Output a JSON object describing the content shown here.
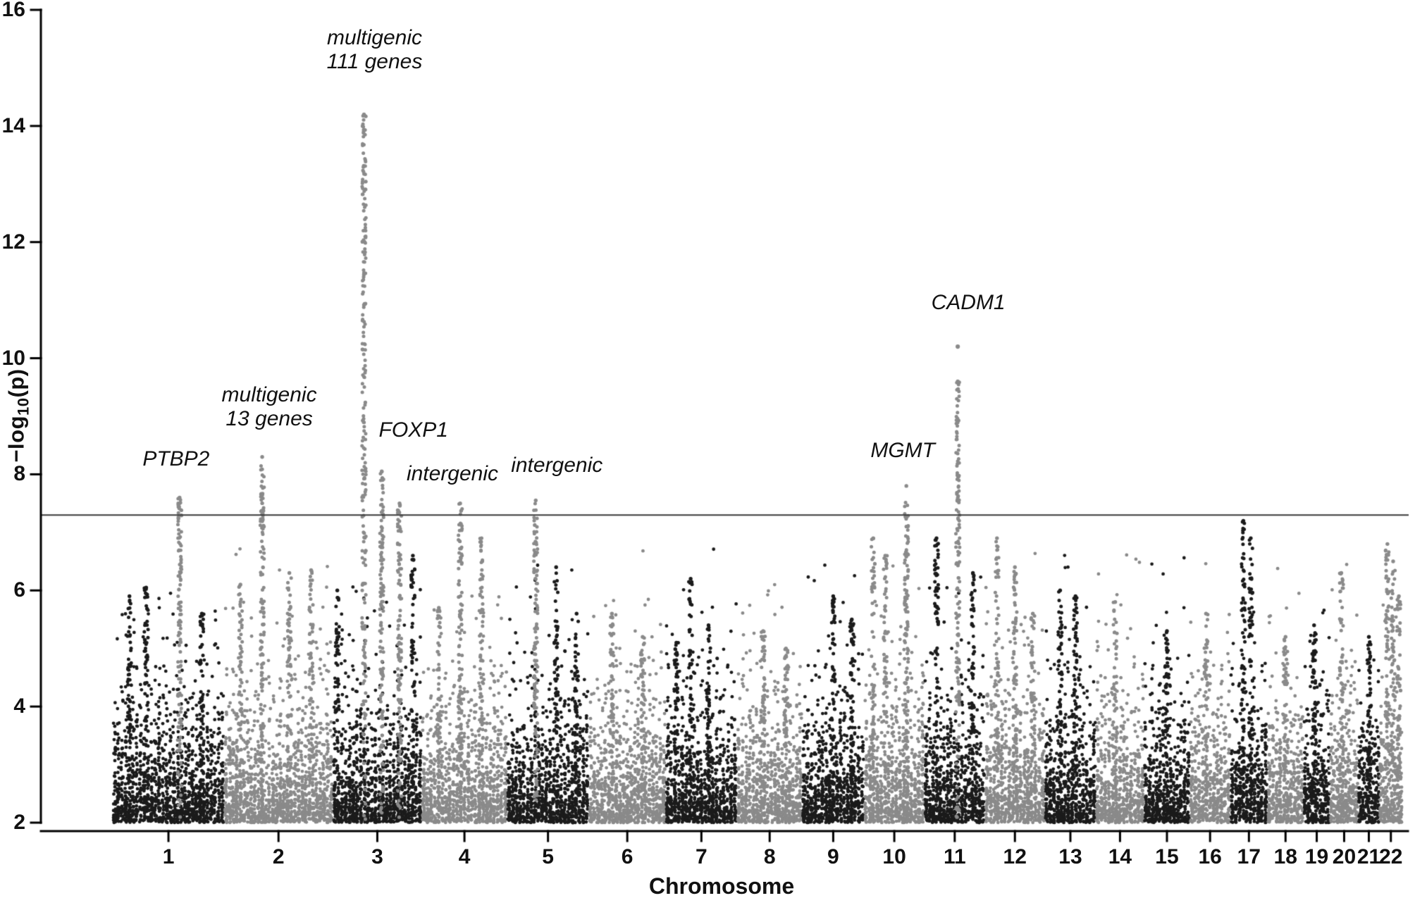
{
  "chart_data": {
    "type": "scatter",
    "variant": "manhattan-plot",
    "title": "",
    "xlabel": "Chromosome",
    "ylabel": "-log10(p)",
    "ylabel_parts": {
      "prefix": "−log",
      "subscript": "10",
      "suffix": "(p)"
    },
    "ylim": [
      2,
      16
    ],
    "yticks": [
      2,
      4,
      6,
      8,
      10,
      12,
      14,
      16
    ],
    "significance_threshold": 7.3,
    "grid": false,
    "legend": false,
    "colors": {
      "odd_chromosome": "#1b1b1b",
      "even_chromosome": "#8a8a8a",
      "highlight": "#8a8a8a",
      "axis": "#000000",
      "threshold_line": "#3a3a3a",
      "background": "#ffffff",
      "text": "#111111"
    },
    "chromosomes": [
      {
        "label": "1",
        "size_mb": 248
      },
      {
        "label": "2",
        "size_mb": 242
      },
      {
        "label": "3",
        "size_mb": 198
      },
      {
        "label": "4",
        "size_mb": 190
      },
      {
        "label": "5",
        "size_mb": 182
      },
      {
        "label": "6",
        "size_mb": 171
      },
      {
        "label": "7",
        "size_mb": 159
      },
      {
        "label": "8",
        "size_mb": 145
      },
      {
        "label": "9",
        "size_mb": 138
      },
      {
        "label": "10",
        "size_mb": 134
      },
      {
        "label": "11",
        "size_mb": 135
      },
      {
        "label": "12",
        "size_mb": 133
      },
      {
        "label": "13",
        "size_mb": 114
      },
      {
        "label": "14",
        "size_mb": 107
      },
      {
        "label": "15",
        "size_mb": 102
      },
      {
        "label": "16",
        "size_mb": 90
      },
      {
        "label": "17",
        "size_mb": 83
      },
      {
        "label": "18",
        "size_mb": 80
      },
      {
        "label": "19",
        "size_mb": 59
      },
      {
        "label": "20",
        "size_mb": 63
      },
      {
        "label": "21",
        "size_mb": 47
      },
      {
        "label": "22",
        "size_mb": 51
      }
    ],
    "peaks": [
      {
        "chr": 1,
        "pos": 0.6,
        "top": 7.6,
        "highlight": true,
        "label_lines": [
          "PTBP2"
        ],
        "label_dx": -5,
        "label_y": 8.05
      },
      {
        "chr": 1,
        "pos": 0.15,
        "top": 5.9
      },
      {
        "chr": 1,
        "pos": 0.3,
        "top": 6.05
      },
      {
        "chr": 1,
        "pos": 0.8,
        "top": 5.6
      },
      {
        "chr": 2,
        "pos": 0.35,
        "top": 8.3,
        "highlight": true,
        "label_lines": [
          "multigenic",
          "13 genes"
        ],
        "label_dx": 10,
        "label_y": 8.75
      },
      {
        "chr": 2,
        "pos": 0.15,
        "top": 6.1
      },
      {
        "chr": 2,
        "pos": 0.6,
        "top": 6.3
      },
      {
        "chr": 2,
        "pos": 0.8,
        "top": 6.35
      },
      {
        "chr": 3,
        "pos": 0.35,
        "top": 14.2,
        "highlight": true,
        "label_lines": [
          "multigenic",
          "111 genes"
        ],
        "label_dx": 15,
        "label_y": 14.9
      },
      {
        "chr": 3,
        "pos": 0.55,
        "top": 8.05,
        "highlight": true,
        "label_lines": [
          "FOXP1"
        ],
        "label_dx": 45,
        "label_y": 8.55
      },
      {
        "chr": 3,
        "pos": 0.75,
        "top": 7.5,
        "highlight": true,
        "label_lines": [
          "intergenic"
        ],
        "label_dx": 75,
        "label_y": 7.8
      },
      {
        "chr": 3,
        "pos": 0.05,
        "top": 6.0
      },
      {
        "chr": 3,
        "pos": 0.9,
        "top": 6.6
      },
      {
        "chr": 4,
        "pos": 0.45,
        "top": 7.5,
        "highlight": true
      },
      {
        "chr": 4,
        "pos": 0.2,
        "top": 5.7
      },
      {
        "chr": 4,
        "pos": 0.7,
        "top": 6.9
      },
      {
        "chr": 5,
        "pos": 0.35,
        "top": 7.55,
        "highlight": true,
        "label_lines": [
          "intergenic"
        ],
        "label_dx": 30,
        "label_y": 7.95
      },
      {
        "chr": 5,
        "pos": 0.6,
        "top": 6.4
      },
      {
        "chr": 5,
        "pos": 0.85,
        "top": 5.6
      },
      {
        "chr": 6,
        "pos": 0.3,
        "top": 5.6
      },
      {
        "chr": 6,
        "pos": 0.7,
        "top": 5.2
      },
      {
        "chr": 7,
        "pos": 0.15,
        "top": 5.1
      },
      {
        "chr": 7,
        "pos": 0.35,
        "top": 6.2
      },
      {
        "chr": 7,
        "pos": 0.6,
        "top": 5.4
      },
      {
        "chr": 8,
        "pos": 0.4,
        "top": 5.3
      },
      {
        "chr": 8,
        "pos": 0.75,
        "top": 5.0
      },
      {
        "chr": 9,
        "pos": 0.5,
        "top": 5.9
      },
      {
        "chr": 9,
        "pos": 0.8,
        "top": 5.5
      },
      {
        "chr": 10,
        "pos": 0.7,
        "top": 7.8,
        "highlight": true,
        "label_lines": [
          "MGMT"
        ],
        "label_dx": -5,
        "label_y": 8.2
      },
      {
        "chr": 10,
        "pos": 0.15,
        "top": 6.9
      },
      {
        "chr": 10,
        "pos": 0.35,
        "top": 6.6
      },
      {
        "chr": 11,
        "pos": 0.55,
        "top": 10.2,
        "highlight": true,
        "label_lines": [
          "CADM1"
        ],
        "label_dx": 15,
        "label_y": 10.75,
        "gap_below_top": true
      },
      {
        "chr": 11,
        "pos": 0.2,
        "top": 6.9
      },
      {
        "chr": 11,
        "pos": 0.8,
        "top": 6.3
      },
      {
        "chr": 12,
        "pos": 0.2,
        "top": 6.9
      },
      {
        "chr": 12,
        "pos": 0.5,
        "top": 6.4
      },
      {
        "chr": 12,
        "pos": 0.8,
        "top": 5.6
      },
      {
        "chr": 13,
        "pos": 0.3,
        "top": 6.0
      },
      {
        "chr": 13,
        "pos": 0.6,
        "top": 5.9
      },
      {
        "chr": 14,
        "pos": 0.4,
        "top": 5.8
      },
      {
        "chr": 15,
        "pos": 0.5,
        "top": 5.3
      },
      {
        "chr": 16,
        "pos": 0.4,
        "top": 5.6
      },
      {
        "chr": 17,
        "pos": 0.35,
        "top": 7.2
      },
      {
        "chr": 17,
        "pos": 0.55,
        "top": 6.9
      },
      {
        "chr": 18,
        "pos": 0.5,
        "top": 5.2
      },
      {
        "chr": 19,
        "pos": 0.4,
        "top": 5.4
      },
      {
        "chr": 20,
        "pos": 0.4,
        "top": 6.3
      },
      {
        "chr": 21,
        "pos": 0.5,
        "top": 5.2
      },
      {
        "chr": 22,
        "pos": 0.35,
        "top": 6.8
      },
      {
        "chr": 22,
        "pos": 0.6,
        "top": 6.5
      },
      {
        "chr": 22,
        "pos": 0.85,
        "top": 5.9
      }
    ]
  }
}
